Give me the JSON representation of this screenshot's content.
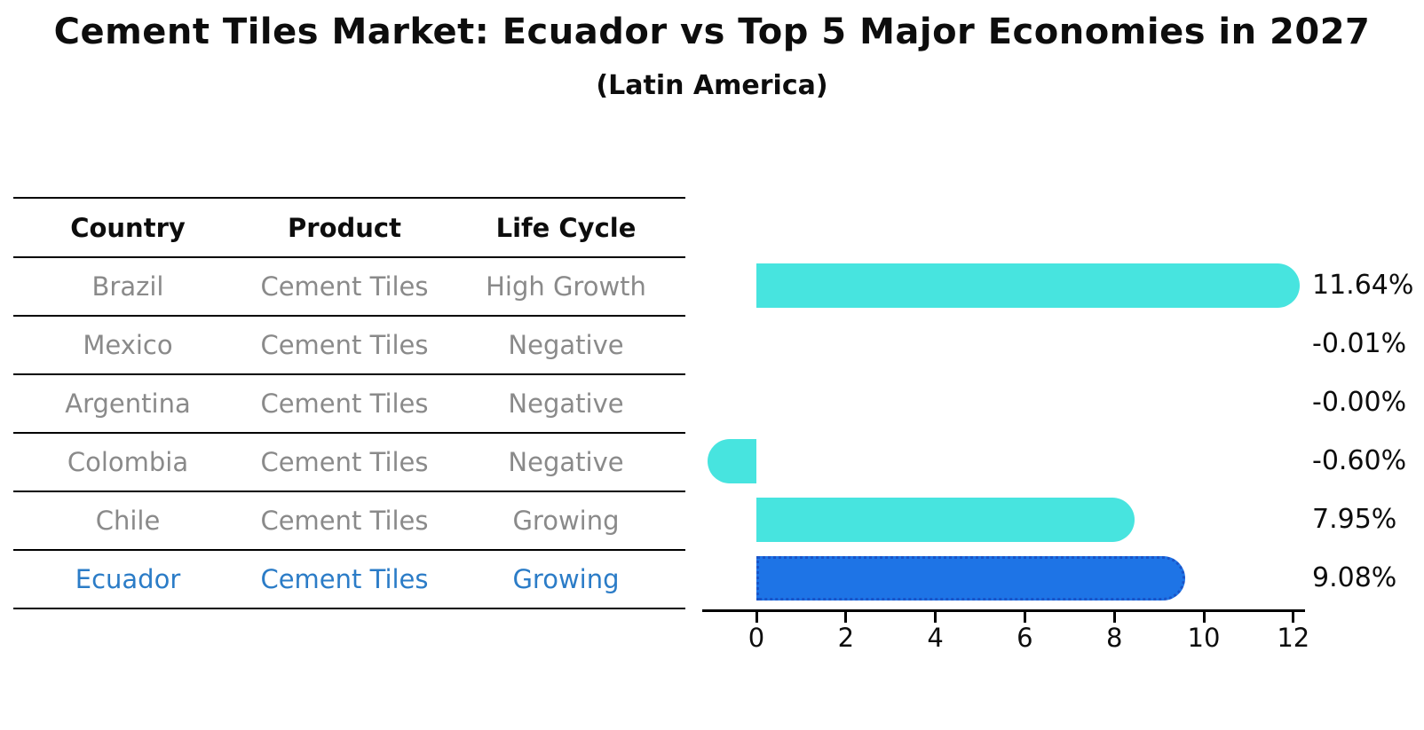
{
  "title": "Cement Tiles Market: Ecuador vs Top 5 Major Economies in 2027",
  "subtitle": "(Latin America)",
  "table": {
    "headers": [
      "Country",
      "Product",
      "Life Cycle"
    ],
    "rows": [
      {
        "country": "Brazil",
        "product": "Cement Tiles",
        "life_cycle": "High Growth",
        "highlight": false
      },
      {
        "country": "Mexico",
        "product": "Cement Tiles",
        "life_cycle": "Negative",
        "highlight": false
      },
      {
        "country": "Argentina",
        "product": "Cement Tiles",
        "life_cycle": "Negative",
        "highlight": false
      },
      {
        "country": "Colombia",
        "product": "Cement Tiles",
        "life_cycle": "Negative",
        "highlight": false
      },
      {
        "country": "Chile",
        "product": "Cement Tiles",
        "life_cycle": "Growing",
        "highlight": false
      },
      {
        "country": "Ecuador",
        "product": "Cement Tiles",
        "life_cycle": "Growing",
        "highlight": true
      }
    ]
  },
  "chart_data": {
    "type": "bar",
    "orientation": "horizontal",
    "title": "Cement Tiles Market: Ecuador vs Top 5 Major Economies in 2027",
    "subtitle": "(Latin America)",
    "categories": [
      "Brazil",
      "Mexico",
      "Argentina",
      "Colombia",
      "Chile",
      "Ecuador"
    ],
    "values": [
      11.64,
      -0.01,
      0.0,
      -0.6,
      7.95,
      9.08
    ],
    "value_labels": [
      "11.64%",
      "-0.01%",
      "-0.00%",
      "-0.60%",
      "7.95%",
      "9.08%"
    ],
    "xticks": [
      0,
      2,
      4,
      6,
      8,
      10,
      12
    ],
    "xlim": [
      -1.2,
      12.3
    ],
    "grid": false,
    "legend": false,
    "bar_color": "#47e4df",
    "highlight_bar_color": "#1e74e6",
    "highlight_bar_edge_color": "#1a54c8",
    "highlight_index": 5,
    "highlight_text_color": "#2b7cc7",
    "table_text_color": "#8a8a8a"
  }
}
